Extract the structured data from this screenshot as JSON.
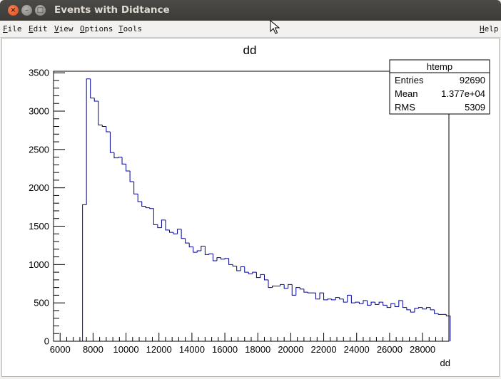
{
  "window": {
    "title": "Events with Didtance",
    "close_glyph": "×",
    "min_glyph": "–",
    "max_glyph": "□"
  },
  "menu": {
    "items": [
      "File",
      "Edit",
      "View",
      "Options",
      "Tools"
    ],
    "help": "Help"
  },
  "stats": {
    "title": "htemp",
    "rows": [
      {
        "label": "Entries",
        "value": "92690"
      },
      {
        "label": "Mean",
        "value": "1.377e+04"
      },
      {
        "label": "RMS",
        "value": "5309"
      }
    ]
  },
  "chart_data": {
    "type": "bar",
    "title": "dd",
    "xlabel": "dd",
    "ylabel": "",
    "xlim": [
      5600,
      29600
    ],
    "ylim": [
      0,
      3520
    ],
    "x_ticks": [
      6000,
      8000,
      10000,
      12000,
      14000,
      16000,
      18000,
      20000,
      22000,
      24000,
      26000,
      28000
    ],
    "y_ticks": [
      0,
      500,
      1000,
      1500,
      2000,
      2500,
      3000,
      3500
    ],
    "bin_start": 7360,
    "bin_width": 240,
    "values": [
      1780,
      3420,
      3170,
      3130,
      2820,
      2800,
      2730,
      2460,
      2390,
      2400,
      2310,
      2220,
      2080,
      1920,
      1820,
      1760,
      1740,
      1730,
      1520,
      1480,
      1580,
      1450,
      1420,
      1400,
      1460,
      1340,
      1280,
      1230,
      1160,
      1180,
      1240,
      1130,
      1140,
      1050,
      1090,
      1070,
      1080,
      1000,
      980,
      920,
      970,
      900,
      880,
      900,
      830,
      870,
      800,
      700,
      720,
      720,
      740,
      690,
      740,
      600,
      700,
      680,
      640,
      630,
      630,
      550,
      630,
      540,
      550,
      540,
      570,
      550,
      510,
      600,
      500,
      510,
      490,
      530,
      470,
      510,
      480,
      510,
      470,
      440,
      490,
      450,
      530,
      440,
      410,
      380,
      430,
      440,
      420,
      440,
      410,
      360,
      350,
      350,
      330
    ],
    "line_color": "#000099",
    "grid": false,
    "legend": "top-right"
  }
}
